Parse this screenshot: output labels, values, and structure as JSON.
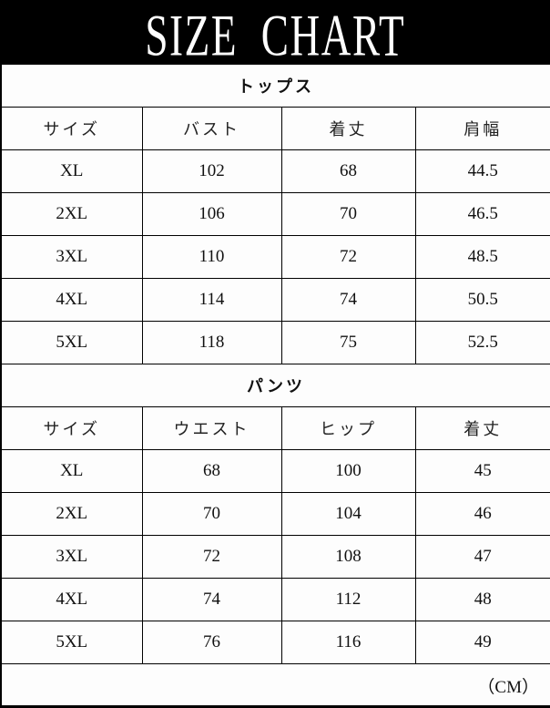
{
  "title": "SIZE  CHART",
  "sections": [
    {
      "name": "トップス",
      "headers": [
        "サイズ",
        "バスト",
        "着丈",
        "肩幅"
      ],
      "rows": [
        [
          "XL",
          "102",
          "68",
          "44.5"
        ],
        [
          "2XL",
          "106",
          "70",
          "46.5"
        ],
        [
          "3XL",
          "110",
          "72",
          "48.5"
        ],
        [
          "4XL",
          "114",
          "74",
          "50.5"
        ],
        [
          "5XL",
          "118",
          "75",
          "52.5"
        ]
      ]
    },
    {
      "name": "パンツ",
      "headers": [
        "サイズ",
        "ウエスト",
        "ヒップ",
        "着丈"
      ],
      "rows": [
        [
          "XL",
          "68",
          "100",
          "45"
        ],
        [
          "2XL",
          "70",
          "104",
          "46"
        ],
        [
          "3XL",
          "72",
          "108",
          "47"
        ],
        [
          "4XL",
          "74",
          "112",
          "48"
        ],
        [
          "5XL",
          "76",
          "116",
          "49"
        ]
      ]
    }
  ],
  "unit": "（CM）"
}
